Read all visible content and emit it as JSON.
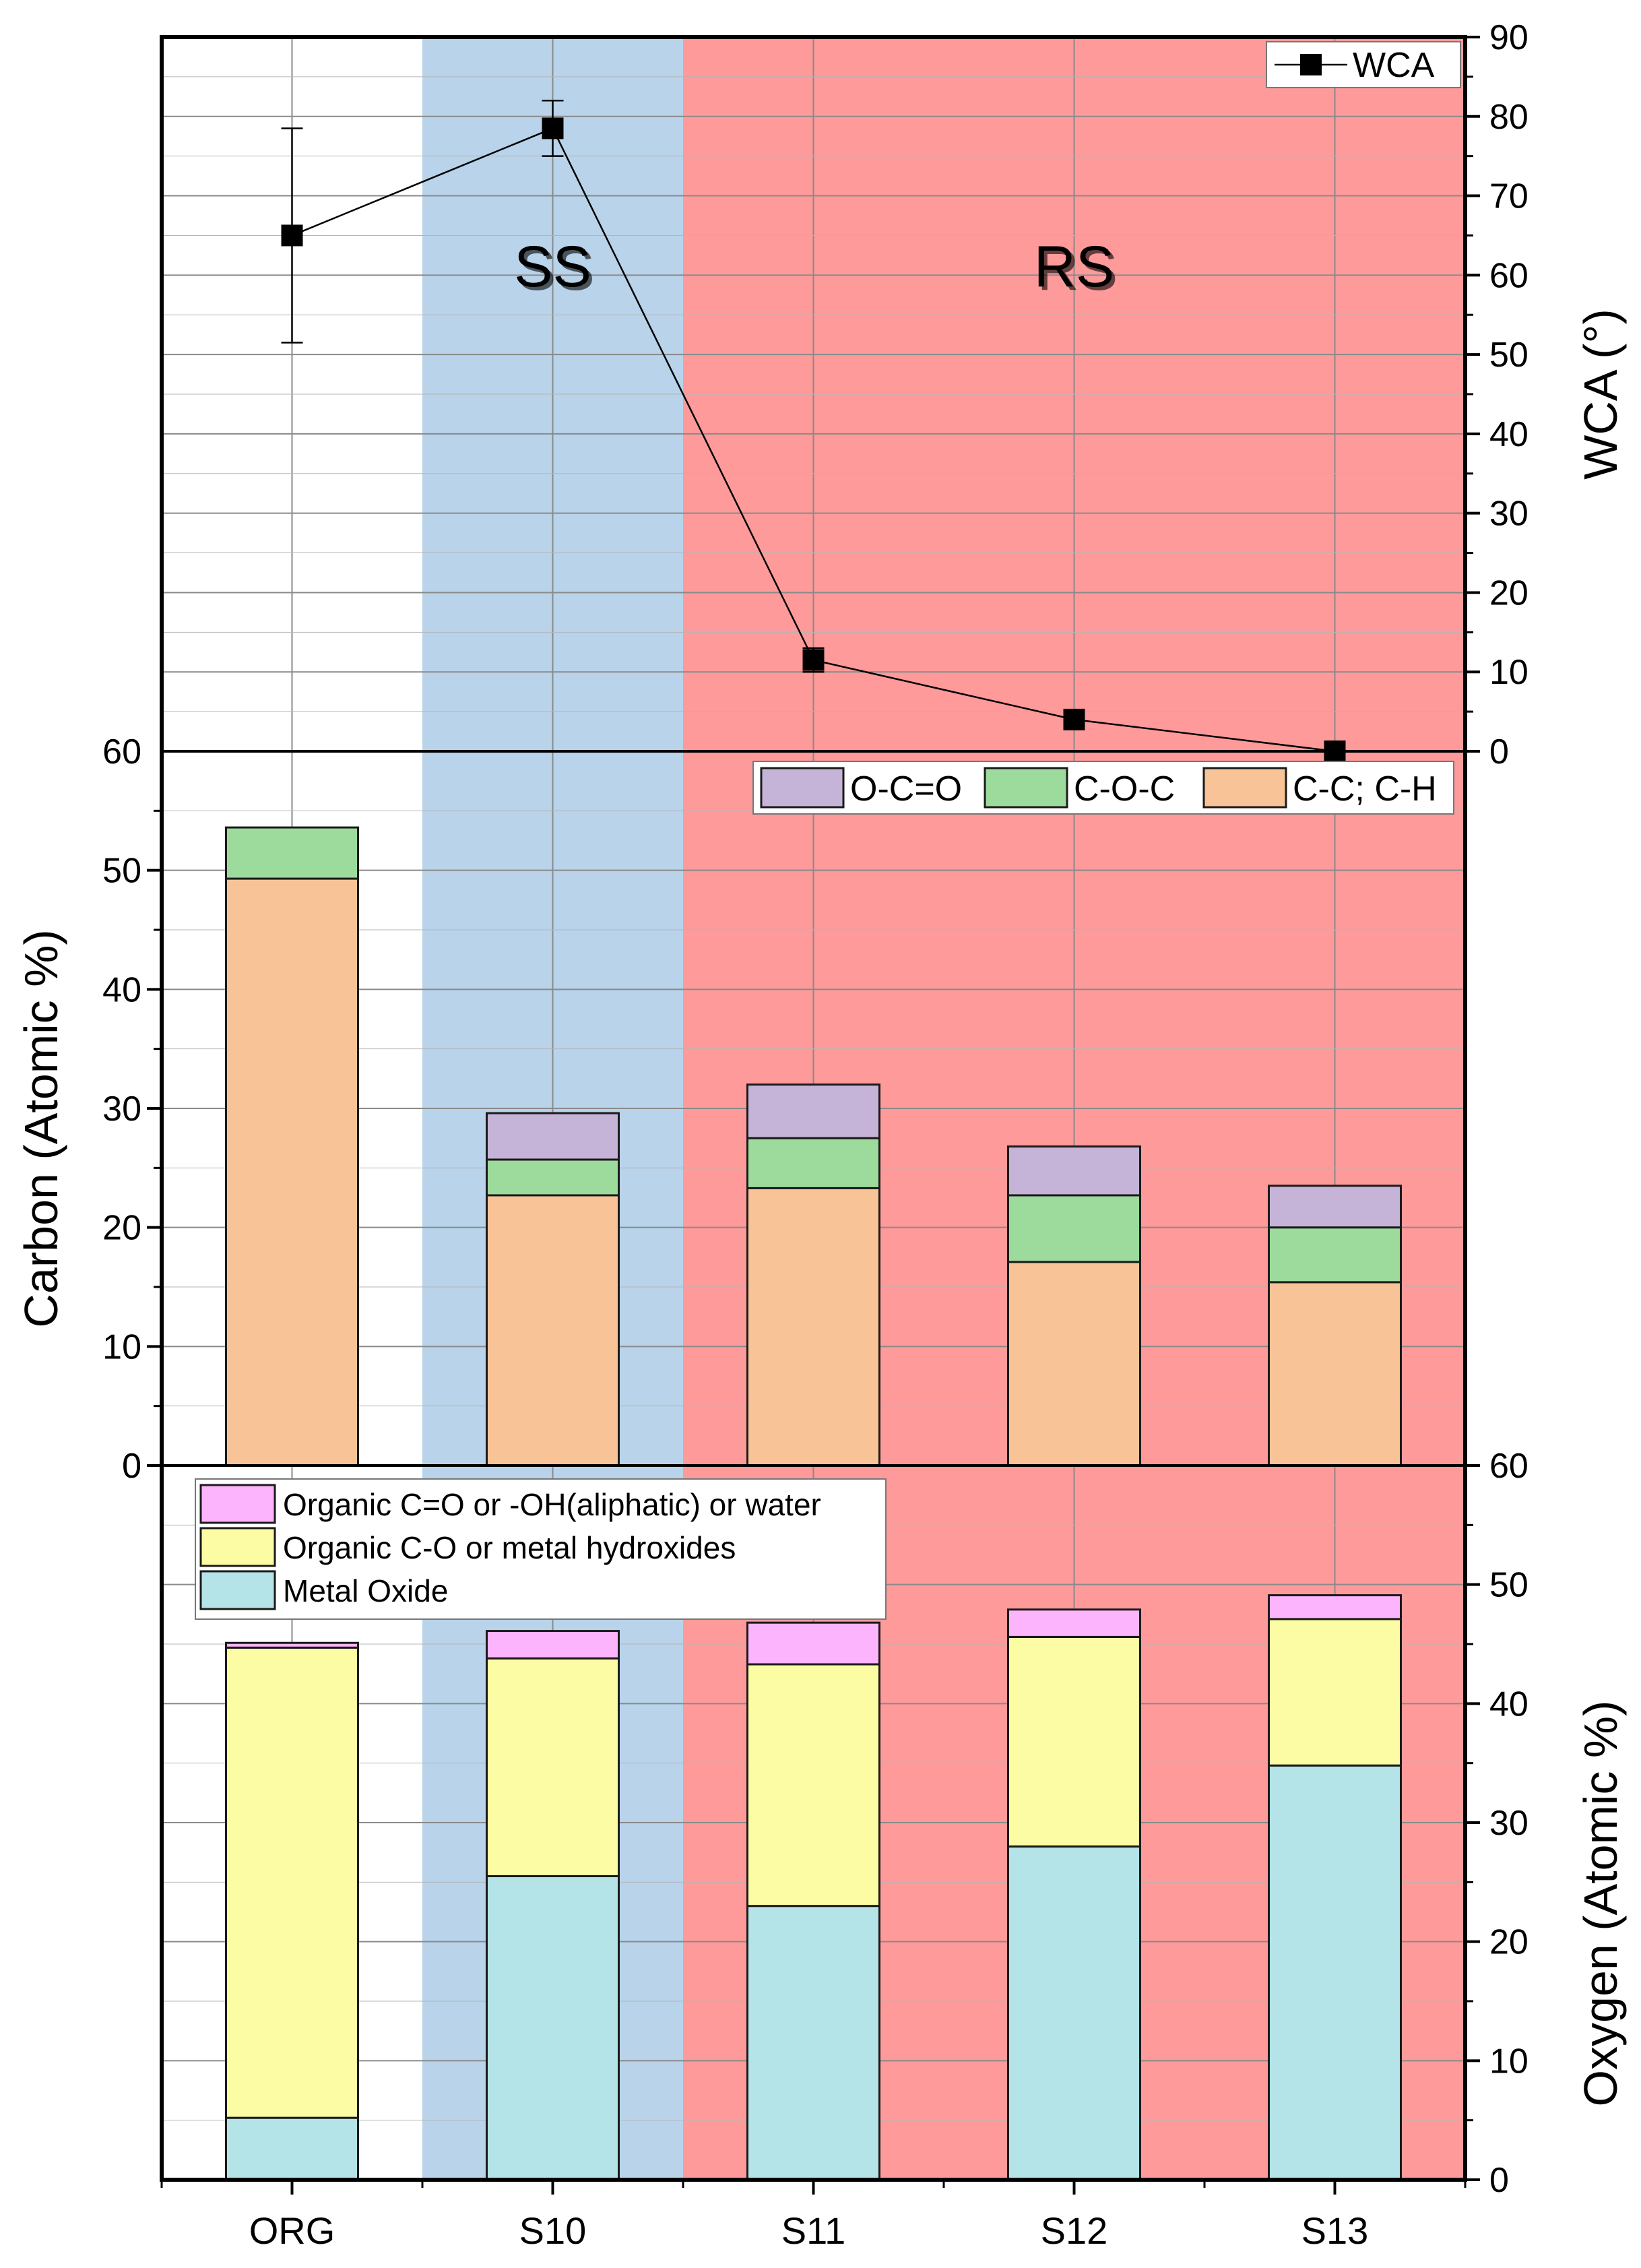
{
  "chart_data": [
    {
      "panel": "top",
      "type": "line",
      "categories": [
        "ORG",
        "S10",
        "S11",
        "S12",
        "S13"
      ],
      "series": [
        {
          "name": "WCA",
          "values": [
            65,
            78.5,
            11.5,
            4,
            0
          ],
          "error": [
            13.5,
            3.5,
            1.5,
            0.5,
            0
          ]
        }
      ],
      "ylabel": "WCA (°)",
      "ylim": [
        0,
        90
      ],
      "yticks": [
        "0",
        "10",
        "20",
        "30",
        "40",
        "50",
        "60",
        "70",
        "80",
        "90"
      ],
      "legend": {
        "label": "WCA",
        "position": "top-right"
      },
      "regions": [
        {
          "label": "SS",
          "color": "#b8d3ea",
          "from_category": "S10",
          "to_category": "S10"
        },
        {
          "label": "RS",
          "color": "#fe9a9a",
          "from_category": "S11",
          "to_category": "S13"
        }
      ],
      "left_axis_top_label": "60",
      "grid": true
    },
    {
      "panel": "middle",
      "type": "bar",
      "stacked": true,
      "categories": [
        "ORG",
        "S10",
        "S11",
        "S12",
        "S13"
      ],
      "series": [
        {
          "name": "C-C; C-H",
          "color": "#f8c497",
          "values": [
            49.3,
            22.7,
            23.3,
            17.1,
            15.4
          ]
        },
        {
          "name": "C-O-C",
          "color": "#9ddb9d",
          "values": [
            4.3,
            3.0,
            4.2,
            5.6,
            4.6
          ]
        },
        {
          "name": "O-C=O",
          "color": "#c6b4d8",
          "values": [
            0,
            3.9,
            4.5,
            4.1,
            3.5
          ]
        }
      ],
      "legend_order": [
        "O-C=O",
        "C-O-C",
        "C-C; C-H"
      ],
      "ylabel": "Carbon (Atomic %)",
      "ylim": [
        0,
        60
      ],
      "yticks": [
        "0",
        "10",
        "20",
        "30",
        "40",
        "50"
      ],
      "right_axis_bottom_label": "60",
      "grid": true
    },
    {
      "panel": "bottom",
      "type": "bar",
      "stacked": true,
      "categories": [
        "ORG",
        "S10",
        "S11",
        "S12",
        "S13"
      ],
      "series": [
        {
          "name": "Metal Oxide",
          "color": "#b4e4e8",
          "values": [
            5.2,
            25.5,
            23.0,
            28.0,
            34.8
          ]
        },
        {
          "name": "Organic C-O or metal hydroxides",
          "color": "#fcfca4",
          "values": [
            39.5,
            18.3,
            20.3,
            17.6,
            12.3
          ]
        },
        {
          "name": "Organic C=O or -OH(aliphatic) or water",
          "color": "#fcb4fc",
          "values": [
            0.4,
            2.3,
            3.5,
            2.3,
            2.0
          ]
        }
      ],
      "legend_order": [
        "Organic C=O or -OH(aliphatic) or water",
        "Organic C-O or metal hydroxides",
        "Metal Oxide"
      ],
      "ylabel": "Oxygen (Atomic %)",
      "ylim": [
        0,
        60
      ],
      "yticks": [
        "0",
        "10",
        "20",
        "30",
        "40",
        "50",
        "60"
      ],
      "left_axis_top_label": "0",
      "grid": true
    }
  ]
}
